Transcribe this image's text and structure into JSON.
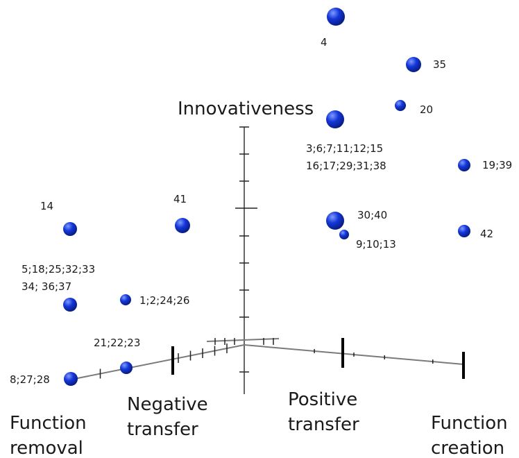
{
  "chart_data": {
    "type": "scatter",
    "subtype": "3d",
    "vertical_axis_title": "Innovativeness",
    "category_axis_titles": [
      "Function removal",
      "Negative transfer",
      "Positive transfer",
      "Function creation"
    ],
    "points": [
      {
        "label": "4",
        "x": 0.6,
        "y": 0.8,
        "z": 1.0,
        "size": "large"
      },
      {
        "label": "35",
        "x": 0.95,
        "y": 0.8,
        "z": 1.0,
        "size": "medium"
      },
      {
        "label": "20",
        "x": 0.85,
        "y": 0.8,
        "z": 0.8,
        "size": "small"
      },
      {
        "label": "3;6;7;11;12;15\n16;17;29;31;38",
        "x": 0.6,
        "y": 0.8,
        "z": 0.8,
        "size": "large"
      },
      {
        "label": "19;39",
        "x": 1.0,
        "y": 0.6,
        "z": 0.6,
        "size": "small"
      },
      {
        "label": "14",
        "x": 0.0,
        "y": 0.6,
        "z": 0.4,
        "size": "medium"
      },
      {
        "label": "41",
        "x": 0.4,
        "y": 0.6,
        "z": 0.4,
        "size": "medium"
      },
      {
        "label": "30;40",
        "x": 0.6,
        "y": 0.6,
        "z": 0.4,
        "size": "large"
      },
      {
        "label": "9;10;13",
        "x": 0.6,
        "y": 0.5,
        "z": 0.4,
        "size": "small"
      },
      {
        "label": "42",
        "x": 1.0,
        "y": 0.5,
        "z": 0.4,
        "size": "small"
      },
      {
        "label": "5;18;25;32;33\n34; 36;37",
        "x": 0.0,
        "y": 0.4,
        "z": 0.2,
        "size": "medium"
      },
      {
        "label": "1;2;24;26",
        "x": 0.2,
        "y": 0.4,
        "z": 0.2,
        "size": "small"
      },
      {
        "label": "21;22;23",
        "x": 0.2,
        "y": 0.2,
        "z": 0.0,
        "size": "medium"
      },
      {
        "label": "8;27;28",
        "x": 0.0,
        "y": 0.0,
        "z": 0.0,
        "size": "medium"
      }
    ],
    "grid": false,
    "legend": "none"
  },
  "colors": {
    "marker": "#1436d8",
    "marker_highlight": "#6f8cff",
    "marker_shadow": "#061a7a",
    "axis": "#7a7a7a"
  }
}
